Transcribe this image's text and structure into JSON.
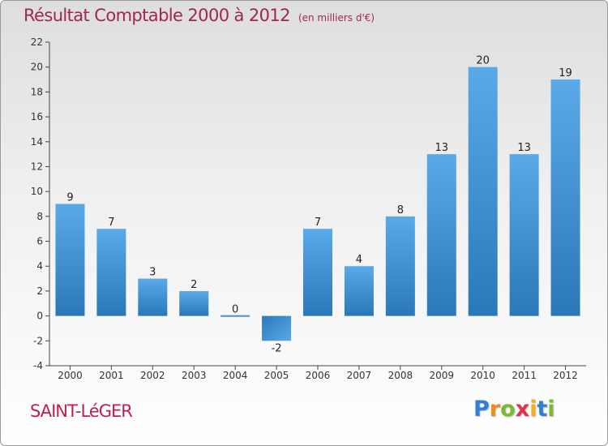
{
  "header": {
    "title": "Résultat Comptable 2000 à 2012",
    "subtitle": "(en milliers d'€)"
  },
  "footer": {
    "commune": "SAINT-LéGER",
    "logo_letters": [
      "P",
      "r",
      "o",
      "x",
      "i",
      "t",
      "i"
    ]
  },
  "colors": {
    "bar_top": "#5aa9e8",
    "bar_bottom": "#2a78b8",
    "title": "#a0284e"
  },
  "chart_data": {
    "type": "bar",
    "title": "Résultat Comptable 2000 à 2012",
    "subtitle": "(en milliers d'€)",
    "categories": [
      "2000",
      "2001",
      "2002",
      "2003",
      "2004",
      "2005",
      "2006",
      "2007",
      "2008",
      "2009",
      "2010",
      "2011",
      "2012"
    ],
    "values": [
      9,
      7,
      3,
      2,
      0,
      -2,
      7,
      4,
      8,
      13,
      20,
      13,
      19
    ],
    "ylim": [
      -4,
      22
    ],
    "yticks": [
      -4,
      -2,
      0,
      2,
      4,
      6,
      8,
      10,
      12,
      14,
      16,
      18,
      20,
      22
    ],
    "xlabel": "",
    "ylabel": "",
    "grid": false
  }
}
